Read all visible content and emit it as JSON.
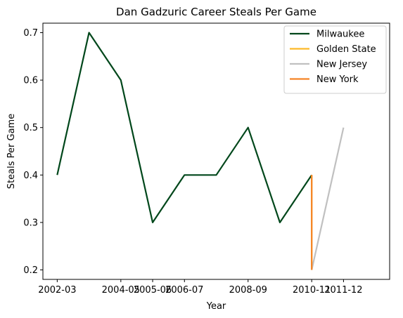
{
  "chart_data": {
    "type": "line",
    "title": "Dan Gadzuric Career Steals Per Game",
    "xlabel": "Year",
    "ylabel": "Steals Per Game",
    "x_ticks": [
      "2002-03",
      "2004-05",
      "2005-06",
      "2006-07",
      "2008-09",
      "2010-11",
      "2011-12"
    ],
    "ylim": [
      0.18,
      0.72
    ],
    "y_ticks": [
      0.2,
      0.3,
      0.4,
      0.5,
      0.6,
      0.7
    ],
    "grid": false,
    "legend_position": "top-right",
    "series": [
      {
        "name": "Milwaukee",
        "color": "#00471B",
        "points": [
          {
            "x": "2002-03",
            "y": 0.4
          },
          {
            "x": "2003-04",
            "y": 0.7
          },
          {
            "x": "2004-05",
            "y": 0.6
          },
          {
            "x": "2005-06",
            "y": 0.3
          },
          {
            "x": "2006-07",
            "y": 0.4
          },
          {
            "x": "2007-08",
            "y": 0.4
          },
          {
            "x": "2008-09",
            "y": 0.5
          },
          {
            "x": "2009-10",
            "y": 0.3
          },
          {
            "x": "2010-11",
            "y": 0.4
          }
        ]
      },
      {
        "name": "Golden State",
        "color": "#FDB927",
        "points": [
          {
            "x": "2010-11",
            "y": 0.4
          },
          {
            "x": "2010-11",
            "y": 0.2
          }
        ]
      },
      {
        "name": "New Jersey",
        "color": "#C0C0C0",
        "points": [
          {
            "x": "2010-11",
            "y": 0.2
          },
          {
            "x": "2011-12",
            "y": 0.5
          }
        ]
      },
      {
        "name": "New York",
        "color": "#F58426",
        "points": [
          {
            "x": "2010-11",
            "y": 0.4
          },
          {
            "x": "2010-11",
            "y": 0.2
          }
        ]
      }
    ]
  }
}
